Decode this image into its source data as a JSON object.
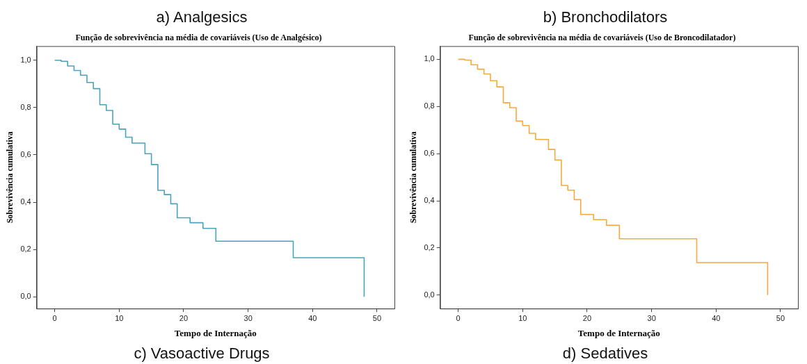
{
  "chart_data": [
    {
      "type": "step",
      "title": "a) Analgesics",
      "subtitle": "Função de sobrevivência na média de covariáveis (Uso de Analgésico)",
      "xlabel": "Tempo de Internação",
      "ylabel": "Sobrevivência cumulativa",
      "x": [
        0,
        1,
        2,
        3,
        4,
        5,
        6,
        7,
        8,
        9,
        10,
        11,
        12,
        14,
        15,
        16,
        17,
        18,
        19,
        21,
        23,
        25,
        37,
        48
      ],
      "series": [
        {
          "color": "#4aa2bd",
          "values": [
            1.0,
            0.996,
            0.976,
            0.957,
            0.937,
            0.906,
            0.88,
            0.812,
            0.788,
            0.73,
            0.709,
            0.675,
            0.65,
            0.605,
            0.559,
            0.45,
            0.432,
            0.393,
            0.334,
            0.313,
            0.289,
            0.235,
            0.165,
            0.0
          ]
        }
      ],
      "xlim": [
        -2.8,
        52.7
      ],
      "ylim": [
        -0.05,
        1.06
      ],
      "xticks": [
        0,
        10,
        20,
        30,
        40,
        50
      ],
      "yticks": [
        {
          "value": 0,
          "label": "0,0"
        },
        {
          "value": 0.2,
          "label": "0,2"
        },
        {
          "value": 0.4,
          "label": "0,4"
        },
        {
          "value": 0.6,
          "label": "0,6"
        },
        {
          "value": 0.8,
          "label": "0,8"
        },
        {
          "value": 1,
          "label": "1,0"
        }
      ],
      "grid": false,
      "annotations": [
        "c) Vasoactive Drugs"
      ]
    },
    {
      "type": "step",
      "title": "b) Bronchodilators",
      "subtitle": "Função de sobrevivência na média de covariáveis (Uso de Broncodilatador)",
      "xlabel": "Tempo de Internação",
      "ylabel": "Sobrevivência cumulativa",
      "x": [
        0,
        1,
        2,
        3,
        4,
        5,
        6,
        7,
        8,
        9,
        10,
        11,
        12,
        14,
        15,
        16,
        17,
        18,
        19,
        21,
        23,
        25,
        37,
        48
      ],
      "series": [
        {
          "color": "#f7a83e",
          "values": [
            1.0,
            0.997,
            0.977,
            0.958,
            0.938,
            0.909,
            0.883,
            0.816,
            0.795,
            0.738,
            0.719,
            0.686,
            0.66,
            0.618,
            0.573,
            0.465,
            0.445,
            0.405,
            0.342,
            0.32,
            0.296,
            0.239,
            0.138,
            0.0
          ]
        }
      ],
      "xlim": [
        -2.8,
        52.7
      ],
      "ylim": [
        -0.057,
        1.056
      ],
      "xticks": [
        0,
        10,
        20,
        30,
        40,
        50
      ],
      "yticks": [
        {
          "value": 0,
          "label": "0,0"
        },
        {
          "value": 0.2,
          "label": "0,2"
        },
        {
          "value": 0.4,
          "label": "0,4"
        },
        {
          "value": 0.6,
          "label": "0,6"
        },
        {
          "value": 0.8,
          "label": "0,8"
        },
        {
          "value": 1,
          "label": "1,0"
        }
      ],
      "grid": false,
      "annotations": [
        "d) Sedatives"
      ]
    }
  ]
}
